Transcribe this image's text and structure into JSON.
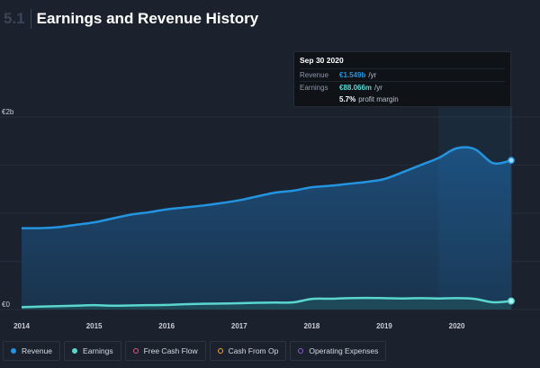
{
  "header": {
    "section": "5.1",
    "title": "Earnings and Revenue History"
  },
  "tooltip": {
    "date": "Sep 30 2020",
    "revenue_label": "Revenue",
    "revenue_value": "€1.549b",
    "revenue_unit": "/yr",
    "earnings_label": "Earnings",
    "earnings_value": "€88.066m",
    "earnings_unit": "/yr",
    "margin_value": "5.7%",
    "margin_label": "profit margin"
  },
  "legend": [
    {
      "label": "Revenue",
      "color": "#2394df",
      "style": "filled"
    },
    {
      "label": "Earnings",
      "color": "#59d7cf",
      "style": "filled"
    },
    {
      "label": "Free Cash Flow",
      "color": "#e0567c",
      "style": "hollow"
    },
    {
      "label": "Cash From Op",
      "color": "#f3a33c",
      "style": "hollow"
    },
    {
      "label": "Operating Expenses",
      "color": "#8e5bd8",
      "style": "hollow"
    }
  ],
  "chart_data": {
    "type": "area",
    "title": "Earnings and Revenue History",
    "y_tick_labels": [
      "€0",
      "€2b"
    ],
    "y_ticks": [
      0,
      2000
    ],
    "ylim": [
      0,
      2000
    ],
    "xlim": [
      2014.0,
      2020.75
    ],
    "x_tick_labels": [
      "2014",
      "2015",
      "2016",
      "2017",
      "2018",
      "2019",
      "2020"
    ],
    "x_ticks": [
      2014,
      2015,
      2016,
      2017,
      2018,
      2019,
      2020
    ],
    "grid": true,
    "legend_position": "bottom",
    "highlight_start": 2019.75,
    "series": [
      {
        "name": "Revenue",
        "color": "#2394df",
        "x": [
          2014.0,
          2014.25,
          2014.5,
          2014.75,
          2015.0,
          2015.25,
          2015.5,
          2015.75,
          2016.0,
          2016.25,
          2016.5,
          2016.75,
          2017.0,
          2017.25,
          2017.5,
          2017.75,
          2018.0,
          2018.25,
          2018.5,
          2018.75,
          2019.0,
          2019.25,
          2019.5,
          2019.75,
          2020.0,
          2020.25,
          2020.5,
          2020.75
        ],
        "values": [
          845,
          845,
          855,
          880,
          905,
          945,
          985,
          1010,
          1040,
          1060,
          1080,
          1105,
          1135,
          1175,
          1215,
          1235,
          1270,
          1285,
          1305,
          1325,
          1355,
          1425,
          1500,
          1575,
          1675,
          1665,
          1520,
          1549
        ]
      },
      {
        "name": "Earnings",
        "color": "#59d7cf",
        "x": [
          2014.0,
          2014.25,
          2014.5,
          2014.75,
          2015.0,
          2015.25,
          2015.5,
          2015.75,
          2016.0,
          2016.25,
          2016.5,
          2016.75,
          2017.0,
          2017.25,
          2017.5,
          2017.75,
          2018.0,
          2018.25,
          2018.5,
          2018.75,
          2019.0,
          2019.25,
          2019.5,
          2019.75,
          2020.0,
          2020.25,
          2020.5,
          2020.75
        ],
        "values": [
          25,
          30,
          35,
          40,
          45,
          40,
          42,
          45,
          48,
          55,
          60,
          62,
          65,
          70,
          72,
          75,
          110,
          112,
          118,
          120,
          118,
          115,
          118,
          115,
          118,
          110,
          75,
          88
        ]
      }
    ]
  }
}
